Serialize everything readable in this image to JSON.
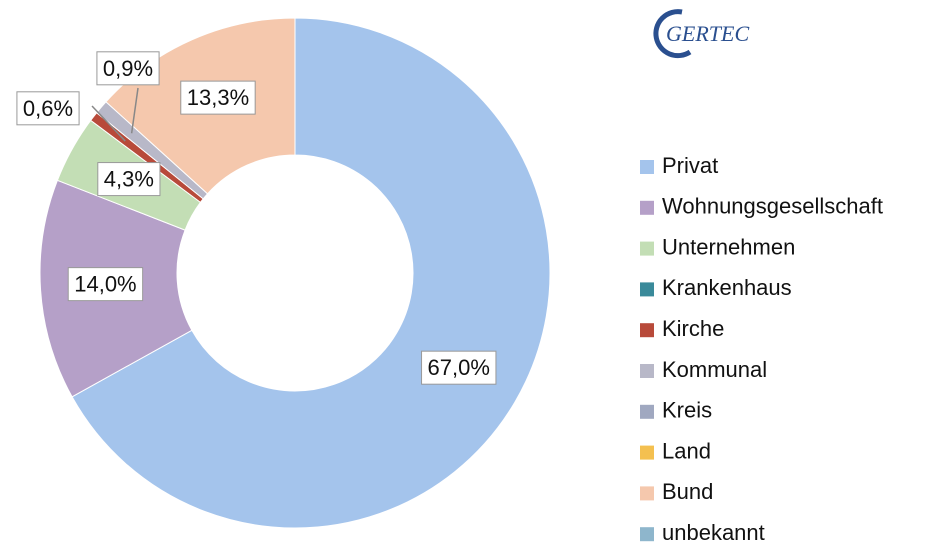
{
  "logo": "GERTEC",
  "chart_data": {
    "type": "donut",
    "categories": [
      "Privat",
      "Wohnungsgesellschaft",
      "Unternehmen",
      "Krankenhaus",
      "Kirche",
      "Kommunal",
      "Kreis",
      "Land",
      "Bund",
      "unbekannt"
    ],
    "values": [
      67.0,
      14.0,
      4.3,
      0,
      0.6,
      0.9,
      0,
      0,
      13.3,
      0
    ],
    "value_labels": [
      "67,0%",
      "14,0%",
      "4,3%",
      null,
      "0,6%",
      "0,9%",
      null,
      null,
      "13,3%",
      null
    ],
    "colors": [
      "#a4c4ec",
      "#b5a0c8",
      "#c3deb5",
      "#3a8a9a",
      "#b84a3a",
      "#b8b8c8",
      "#a0a8c0",
      "#f4c050",
      "#f5c8ad",
      "#8eb6cc"
    ],
    "legend": "right"
  }
}
